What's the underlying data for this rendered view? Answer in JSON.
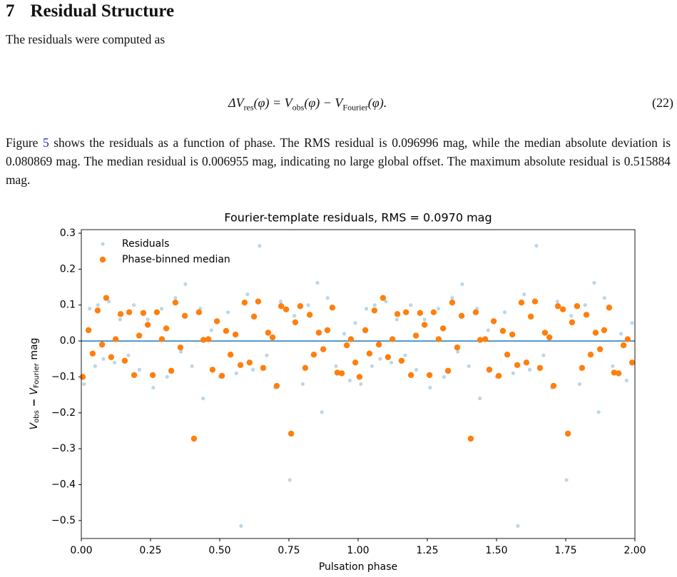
{
  "section": {
    "number": "7",
    "title": "Residual Structure"
  },
  "paragraph1": "The residuals were computed as",
  "equation": {
    "parts": [
      "ΔV",
      "res",
      "(φ) = V",
      "obs",
      "(φ) − V",
      "Fourier",
      "(φ)."
    ],
    "number": "(22)"
  },
  "paragraph2": {
    "before": "Figure ",
    "link": "5",
    "after": " shows the residuals as a function of phase. The RMS residual is 0.096996 mag, while the median absolute deviation is 0.080869 mag. The median residual is 0.006955 mag, indicating no large global offset. The maximum absolute residual is 0.515884 mag."
  },
  "chart_data": {
    "type": "scatter",
    "title": "Fourier-template residuals, RMS = 0.0970 mag",
    "x_label": "Pulsation phase",
    "y_label": [
      "V",
      "obs",
      " − ",
      "V",
      "Fourier",
      " mag"
    ],
    "xlim": [
      0,
      2
    ],
    "ylim": [
      -0.55,
      0.31
    ],
    "xticks": [
      {
        "value": 0,
        "label": "0.00"
      },
      {
        "value": 0.25,
        "label": "0.25"
      },
      {
        "value": 0.5,
        "label": "0.50"
      },
      {
        "value": 0.75,
        "label": "0.75"
      },
      {
        "value": 1,
        "label": "1.00"
      },
      {
        "value": 1.25,
        "label": "1.25"
      },
      {
        "value": 1.5,
        "label": "1.50"
      },
      {
        "value": 1.75,
        "label": "1.75"
      },
      {
        "value": 2,
        "label": "2.00"
      }
    ],
    "yticks": [
      {
        "value": -0.5,
        "label": "−0.5"
      },
      {
        "value": -0.4,
        "label": "−0.4"
      },
      {
        "value": -0.3,
        "label": "−0.3"
      },
      {
        "value": -0.2,
        "label": "−0.2"
      },
      {
        "value": -0.1,
        "label": "−0.1"
      },
      {
        "value": 0,
        "label": "0.0"
      },
      0.1,
      0.2,
      0.3
    ],
    "hline": {
      "value": 0,
      "color": "#1f77b4"
    },
    "legend": "upper left",
    "series": [
      {
        "name": "Residuals",
        "color": "#1f77b4",
        "alpha": 0.3,
        "size": 2.6,
        "x": [
          0.01,
          0.03,
          0.05,
          0.06,
          0.08,
          0.1,
          0.12,
          0.14,
          0.17,
          0.19,
          0.21,
          0.24,
          0.26,
          0.29,
          0.31,
          0.34,
          0.36,
          0.376,
          0.4,
          0.43,
          0.44,
          0.47,
          0.5,
          0.53,
          0.56,
          0.577,
          0.6,
          0.62,
          0.644,
          0.67,
          0.7,
          0.72,
          0.753,
          0.77,
          0.8,
          0.82,
          0.853,
          0.869,
          0.89,
          0.92,
          0.95,
          0.97,
          0.99,
          1.01,
          1.03,
          1.05,
          1.06,
          1.08,
          1.1,
          1.12,
          1.14,
          1.17,
          1.19,
          1.21,
          1.24,
          1.26,
          1.29,
          1.31,
          1.34,
          1.36,
          1.376,
          1.4,
          1.43,
          1.44,
          1.47,
          1.5,
          1.53,
          1.56,
          1.577,
          1.6,
          1.62,
          1.644,
          1.67,
          1.7,
          1.72,
          1.753,
          1.77,
          1.8,
          1.82,
          1.853,
          1.869,
          1.89,
          1.92,
          1.95,
          1.97,
          1.99
        ],
        "y": [
          -0.12,
          0.09,
          -0.07,
          0.1,
          -0.05,
          0.11,
          -0.06,
          0.06,
          -0.04,
          0.1,
          -0.08,
          0.06,
          -0.13,
          0.09,
          -0.1,
          0.12,
          -0.03,
          0.158,
          -0.07,
          0.09,
          -0.16,
          0.03,
          -0.1,
          0.08,
          -0.09,
          -0.515,
          0.13,
          -0.08,
          0.265,
          -0.04,
          -0.13,
          0.11,
          -0.387,
          0.07,
          -0.12,
          0.1,
          0.162,
          -0.198,
          0.12,
          -0.07,
          0.02,
          -0.11,
          0.05,
          -0.12,
          0.09,
          -0.07,
          0.1,
          -0.05,
          0.11,
          -0.06,
          0.06,
          -0.04,
          0.1,
          -0.08,
          0.06,
          -0.13,
          0.09,
          -0.1,
          0.12,
          -0.03,
          0.158,
          -0.07,
          0.09,
          -0.16,
          0.03,
          -0.1,
          0.08,
          -0.09,
          -0.515,
          0.13,
          -0.08,
          0.265,
          -0.04,
          -0.13,
          0.11,
          -0.387,
          0.07,
          -0.12,
          0.1,
          0.162,
          -0.198,
          0.12,
          -0.07,
          0.02,
          -0.11,
          0.05
        ]
      },
      {
        "name": "Phase-binned median",
        "color": "#ff7f0e",
        "alpha": 1,
        "size": 4.2,
        "x": [
          0.005,
          0.026,
          0.041,
          0.059,
          0.075,
          0.09,
          0.108,
          0.124,
          0.142,
          0.157,
          0.173,
          0.191,
          0.209,
          0.224,
          0.24,
          0.258,
          0.273,
          0.291,
          0.307,
          0.325,
          0.34,
          0.358,
          0.374,
          0.407,
          0.425,
          0.441,
          0.459,
          0.474,
          0.49,
          0.508,
          0.523,
          0.539,
          0.557,
          0.575,
          0.59,
          0.608,
          0.624,
          0.639,
          0.657,
          0.675,
          0.691,
          0.706,
          0.722,
          0.74,
          0.758,
          0.773,
          0.791,
          0.809,
          0.825,
          0.84,
          0.858,
          0.874,
          0.889,
          0.907,
          0.925,
          0.941,
          0.959,
          0.974,
          0.99,
          1.005,
          1.026,
          1.041,
          1.059,
          1.075,
          1.09,
          1.108,
          1.124,
          1.142,
          1.157,
          1.173,
          1.191,
          1.209,
          1.224,
          1.24,
          1.258,
          1.273,
          1.291,
          1.307,
          1.325,
          1.34,
          1.358,
          1.374,
          1.407,
          1.425,
          1.441,
          1.459,
          1.474,
          1.49,
          1.508,
          1.523,
          1.539,
          1.557,
          1.575,
          1.59,
          1.608,
          1.624,
          1.639,
          1.657,
          1.675,
          1.691,
          1.706,
          1.722,
          1.74,
          1.758,
          1.773,
          1.791,
          1.809,
          1.825,
          1.84,
          1.858,
          1.874,
          1.889,
          1.907,
          1.925,
          1.941,
          1.959,
          1.974,
          1.99
        ],
        "y": [
          -0.1,
          0.03,
          -0.035,
          0.085,
          -0.01,
          0.12,
          -0.045,
          0.005,
          0.075,
          -0.055,
          0.08,
          -0.095,
          0.015,
          0.078,
          0.045,
          -0.095,
          0.08,
          0.005,
          0.035,
          -0.083,
          0.107,
          -0.018,
          0.07,
          -0.272,
          0.08,
          0.003,
          0.005,
          -0.08,
          0.055,
          -0.097,
          0.028,
          -0.038,
          0.018,
          -0.067,
          0.107,
          -0.06,
          0.068,
          0.11,
          -0.075,
          0.023,
          0.01,
          -0.125,
          0.097,
          0.088,
          -0.258,
          0.052,
          0.097,
          -0.075,
          0.073,
          -0.038,
          0.023,
          -0.023,
          0.03,
          0.093,
          -0.088,
          -0.09,
          -0.012,
          0.005,
          -0.06,
          -0.1,
          0.03,
          -0.035,
          0.085,
          -0.01,
          0.12,
          -0.045,
          0.005,
          0.075,
          -0.055,
          0.08,
          -0.095,
          0.015,
          0.078,
          0.045,
          -0.095,
          0.08,
          0.005,
          0.035,
          -0.083,
          0.107,
          -0.018,
          0.07,
          -0.272,
          0.08,
          0.003,
          0.005,
          -0.08,
          0.055,
          -0.097,
          0.028,
          -0.038,
          0.018,
          -0.067,
          0.107,
          -0.06,
          0.068,
          0.11,
          -0.075,
          0.023,
          0.01,
          -0.125,
          0.097,
          0.088,
          -0.258,
          0.052,
          0.097,
          -0.075,
          0.073,
          -0.038,
          0.023,
          -0.023,
          0.03,
          0.093,
          -0.088,
          -0.09,
          -0.012,
          0.005,
          -0.06
        ]
      }
    ]
  }
}
